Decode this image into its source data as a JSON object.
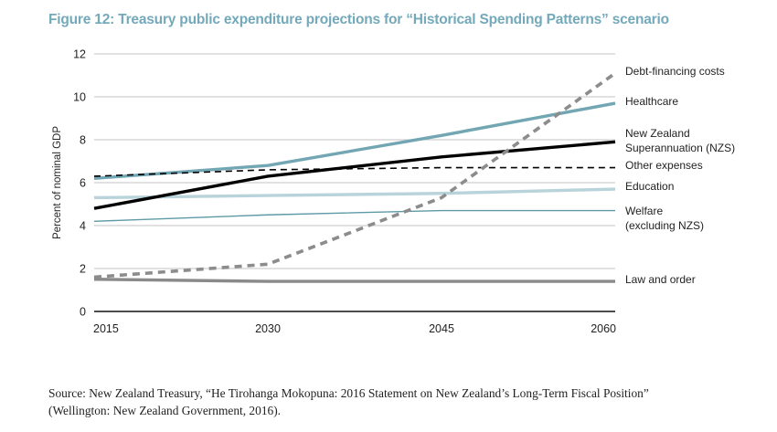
{
  "figure": {
    "title": "Figure 12: Treasury public expenditure projections for “Historical Spending Patterns” scenario",
    "source_line1": "Source: New Zealand Treasury, “He Tirohanga Mokopuna: 2016 Statement on New Zealand’s Long-Term Fiscal Position”",
    "source_line2": "(Wellington: New Zealand Government, 2016)."
  },
  "chart_data": {
    "type": "line",
    "title": "Figure 12: Treasury public expenditure projections for “Historical Spending Patterns” scenario",
    "xlabel": "",
    "ylabel": "Percent of nominal GDP",
    "x": [
      2015,
      2030,
      2045,
      2060
    ],
    "x_tick_labels": [
      "2015",
      "2030",
      "2045",
      "2060"
    ],
    "ylim": [
      0,
      12
    ],
    "y_ticks": [
      0,
      2,
      4,
      6,
      8,
      10,
      12
    ],
    "y_tick_labels": [
      "0",
      "2",
      "4",
      "6",
      "8",
      "10",
      "12"
    ],
    "grid": true,
    "legend_placement": "right (end-of-line labels)",
    "series": [
      {
        "name": "Debt-financing costs",
        "label_lines": [
          "Debt-financing costs"
        ],
        "values": [
          1.6,
          2.2,
          5.3,
          11.1
        ],
        "color": "#8c8c8c",
        "style": "dashed-thick"
      },
      {
        "name": "Healthcare",
        "label_lines": [
          "Healthcare"
        ],
        "values": [
          6.2,
          6.8,
          8.2,
          9.7
        ],
        "color": "#72a6b2",
        "style": "solid-thick"
      },
      {
        "name": "New Zealand Superannuation (NZS)",
        "label_lines": [
          "New Zealand",
          "Superannuation (NZS)"
        ],
        "values": [
          4.8,
          6.3,
          7.2,
          7.9
        ],
        "color": "#000000",
        "style": "solid-thick"
      },
      {
        "name": "Other expenses",
        "label_lines": [
          "Other expenses"
        ],
        "values": [
          6.3,
          6.6,
          6.7,
          6.7
        ],
        "color": "#000000",
        "style": "dashed-thin"
      },
      {
        "name": "Education",
        "label_lines": [
          "Education"
        ],
        "values": [
          5.3,
          5.4,
          5.5,
          5.7
        ],
        "color": "#b9d3db",
        "style": "solid-thick"
      },
      {
        "name": "Welfare (excluding NZS)",
        "label_lines": [
          "Welfare",
          "(excluding NZS)"
        ],
        "values": [
          4.2,
          4.5,
          4.7,
          4.7
        ],
        "color": "#5e9aa6",
        "style": "solid-thin"
      },
      {
        "name": "Law and order",
        "label_lines": [
          "Law and order"
        ],
        "values": [
          1.5,
          1.4,
          1.4,
          1.4
        ],
        "color": "#8a8a8a",
        "style": "solid-thick"
      }
    ]
  }
}
